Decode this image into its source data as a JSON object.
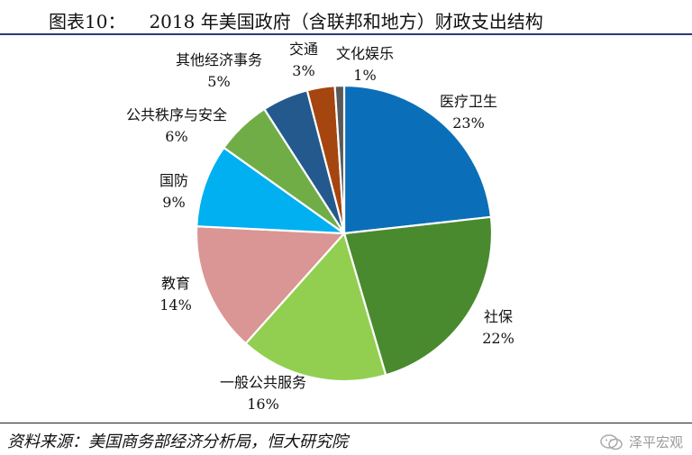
{
  "figure": {
    "number": "图表10：",
    "title": "2018 年美国政府（含联邦和地方）财政支出结构"
  },
  "chart_data": {
    "type": "pie",
    "start_angle_deg": 0,
    "direction": "clockwise",
    "slices": [
      {
        "label": "医疗卫生",
        "value": 23,
        "value_label": "23%",
        "color": "#0a6fb8"
      },
      {
        "label": "社保",
        "value": 22,
        "value_label": "22%",
        "color": "#4a8a2e"
      },
      {
        "label": "一般公共服务",
        "value": 16,
        "value_label": "16%",
        "color": "#92cf50"
      },
      {
        "label": "教育",
        "value": 14,
        "value_label": "14%",
        "color": "#d99694"
      },
      {
        "label": "国防",
        "value": 9,
        "value_label": "9%",
        "color": "#00b0f0"
      },
      {
        "label": "公共秩序与安全",
        "value": 6,
        "value_label": "6%",
        "color": "#70ad47"
      },
      {
        "label": "其他经济事务",
        "value": 5,
        "value_label": "5%",
        "color": "#24598e"
      },
      {
        "label": "交通",
        "value": 3,
        "value_label": "3%",
        "color": "#a5450f"
      },
      {
        "label": "文化娱乐",
        "value": 1,
        "value_label": "1%",
        "color": "#595959"
      }
    ]
  },
  "source": "资料来源：美国商务部经济分析局，恒大研究院",
  "brand": {
    "name": "泽平宏观",
    "icon": "wechat-icon"
  }
}
